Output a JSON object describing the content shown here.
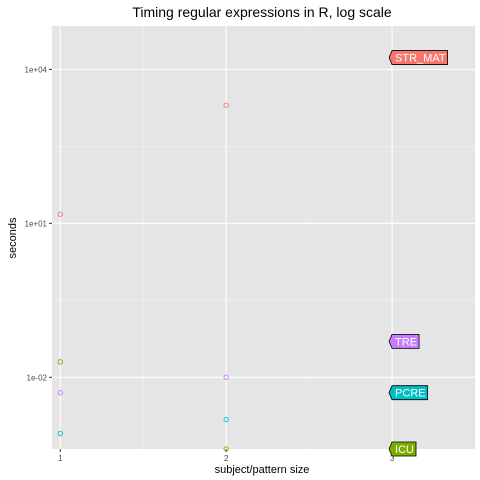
{
  "chart_data": {
    "type": "scatter",
    "title": "Timing regular expressions in R, log scale",
    "xlabel": "subject/pattern size",
    "ylabel": "seconds",
    "x_scale": "linear",
    "y_scale": "log10",
    "xlim": [
      0.95,
      3.5
    ],
    "ylim": [
      0.0004,
      70000
    ],
    "x_ticks": [
      1,
      2,
      3
    ],
    "x_tick_labels": [
      "1",
      "2",
      "3"
    ],
    "y_ticks": [
      0.01,
      10,
      10000
    ],
    "y_tick_labels": [
      "1e-02",
      "1e+01",
      "1e+04"
    ],
    "grid": true,
    "legend": "direct labels at right end of each series",
    "background": "#e5e5e5",
    "series": [
      {
        "name": "STR_MAT",
        "color": "#f8766d",
        "x": [
          1,
          2,
          3
        ],
        "y": [
          15,
          2000,
          17000
        ]
      },
      {
        "name": "TRE",
        "color": "#c77cff",
        "x": [
          1,
          2,
          3
        ],
        "y": [
          0.005,
          0.01,
          0.05
        ]
      },
      {
        "name": "PCRE",
        "color": "#00bfc4",
        "x": [
          1,
          2,
          3
        ],
        "y": [
          0.0008,
          0.0015,
          0.005
        ]
      },
      {
        "name": "ICU",
        "color": "#7cae00",
        "x": [
          1,
          2,
          3
        ],
        "y": [
          0.02,
          0.0002,
          0.0002
        ]
      }
    ]
  }
}
